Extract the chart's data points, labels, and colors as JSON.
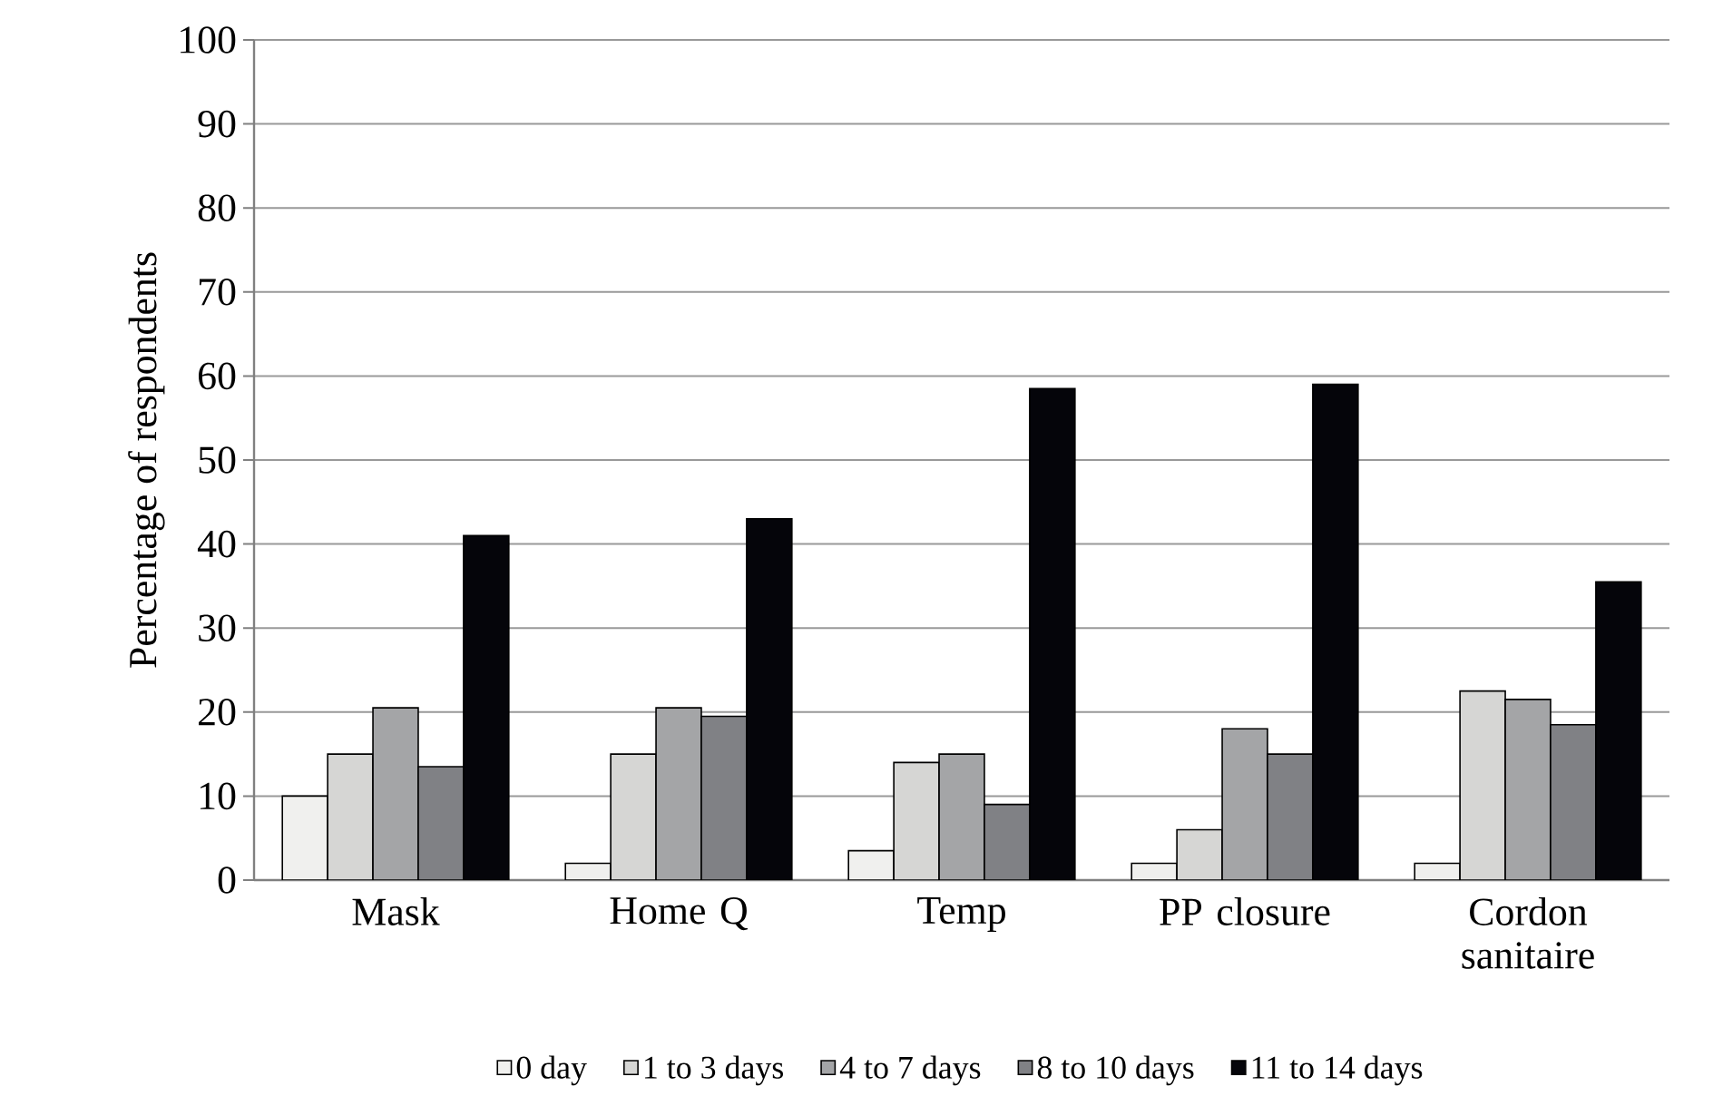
{
  "chart_data": {
    "type": "bar",
    "ylabel": "Percentage of respondents",
    "categories": [
      "Mask",
      "Home Q",
      "Temp",
      "PP closure",
      "Cordon sanitaire"
    ],
    "series": [
      {
        "name": "0 day",
        "color": "#f0f0ee",
        "values": [
          10,
          2,
          3.5,
          2,
          2
        ]
      },
      {
        "name": "1 to 3 days",
        "color": "#d6d6d4",
        "values": [
          15,
          15,
          14,
          6,
          22.5
        ]
      },
      {
        "name": "4 to 7 days",
        "color": "#a4a5a7",
        "values": [
          20.5,
          20.5,
          15,
          18,
          21.5
        ]
      },
      {
        "name": "8 to 10 days",
        "color": "#808185",
        "values": [
          13.5,
          19.5,
          9,
          15,
          18.5
        ]
      },
      {
        "name": "11 to 14 days",
        "color": "#05050a",
        "values": [
          41,
          43,
          58.5,
          59,
          35.5
        ]
      }
    ],
    "ylim": [
      0,
      100
    ],
    "yticks": [
      0,
      10,
      20,
      30,
      40,
      50,
      60,
      70,
      80,
      90,
      100
    ],
    "grid": "y",
    "legend": "bottom"
  }
}
